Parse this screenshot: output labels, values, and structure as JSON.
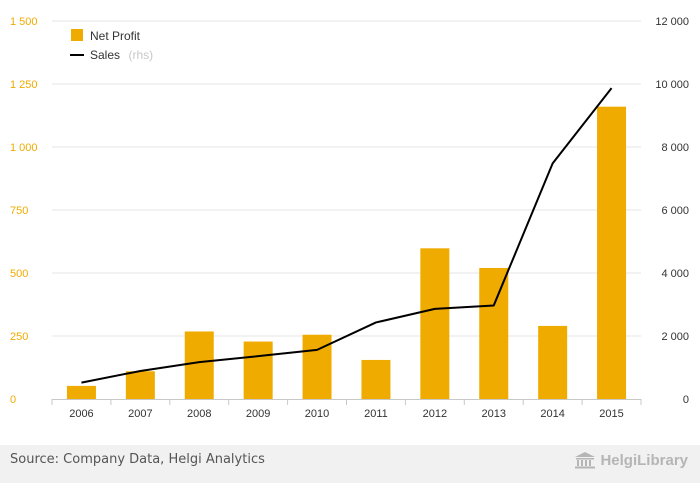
{
  "colors": {
    "bar": "#f0ab00",
    "line": "#000000",
    "left_axis": "#f0ab00",
    "grid": "#e6e6e6"
  },
  "legend": {
    "bar_label": "Net Profit",
    "line_label": "Sales",
    "line_suffix": "(rhs)",
    "position": "top-left"
  },
  "footer": {
    "source": "Source: Company Data, Helgi Analytics",
    "brand": "HelgiLibrary",
    "brand_icon": "library-building-icon"
  },
  "chart_data": {
    "type": "bar",
    "categories": [
      "2006",
      "2007",
      "2008",
      "2009",
      "2010",
      "2011",
      "2012",
      "2013",
      "2014",
      "2015"
    ],
    "series": [
      {
        "name": "Net Profit",
        "type": "bar",
        "axis": "left",
        "values": [
          52,
          110,
          268,
          228,
          255,
          155,
          598,
          520,
          290,
          1160
        ]
      },
      {
        "name": "Sales",
        "type": "line",
        "axis": "right",
        "values": [
          520,
          890,
          1170,
          1360,
          1560,
          2430,
          2860,
          2970,
          7480,
          9870
        ]
      }
    ],
    "y_left": {
      "lim": [
        0,
        1500
      ],
      "ticks": [
        0,
        250,
        500,
        750,
        1000,
        1250,
        1500
      ],
      "tick_labels": [
        "0",
        "250",
        "500",
        "750",
        "1 000",
        "1 250",
        "1 500"
      ]
    },
    "y_right": {
      "lim": [
        0,
        12000
      ],
      "ticks": [
        0,
        2000,
        4000,
        6000,
        8000,
        10000,
        12000
      ],
      "tick_labels": [
        "0",
        "2 000",
        "4 000",
        "6 000",
        "8 000",
        "10 000",
        "12 000"
      ]
    },
    "grid": true
  }
}
